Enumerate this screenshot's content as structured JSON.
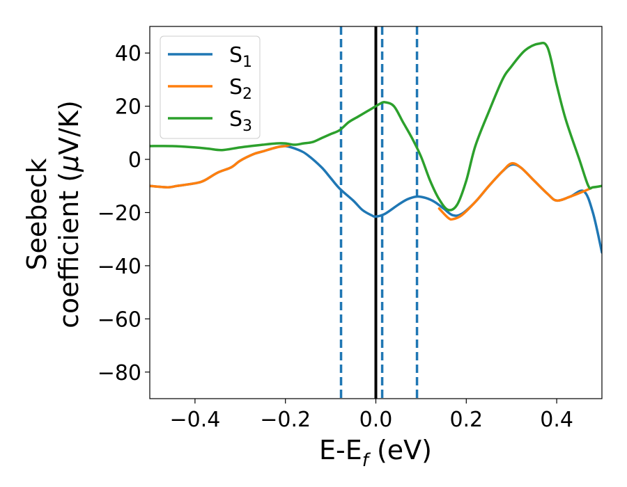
{
  "chart_data": {
    "type": "line",
    "xlabel": "E-E",
    "xlabel_sub": "f",
    "xlabel_units": " (eV)",
    "ylabel_line1": "Seebeck",
    "ylabel_line2": "coefficient  (",
    "ylabel_mu": "μ",
    "ylabel_units": "V/K)",
    "xlim": [
      -0.5,
      0.5
    ],
    "ylim": [
      -90,
      50
    ],
    "xticks": [
      -0.4,
      -0.2,
      0.0,
      0.2,
      0.4
    ],
    "xtick_labels": [
      "−0.4",
      "−0.2",
      "0.0",
      "0.2",
      "0.4"
    ],
    "yticks": [
      -80,
      -60,
      -40,
      -20,
      0,
      20,
      40
    ],
    "ytick_labels": [
      "−80",
      "−60",
      "−40",
      "−20",
      "0",
      "20",
      "40"
    ],
    "legend_placement": "upper-left",
    "grid": false,
    "series": [
      {
        "name": "S",
        "subscript": "1",
        "color": "#1f77b4",
        "x": [
          -0.5,
          -0.46,
          -0.44,
          -0.4,
          -0.38,
          -0.35,
          -0.32,
          -0.3,
          -0.27,
          -0.25,
          -0.22,
          -0.2,
          -0.17,
          -0.15,
          -0.12,
          -0.1,
          -0.08,
          -0.05,
          -0.03,
          -0.01,
          0.0,
          0.02,
          0.05,
          0.07,
          0.09,
          0.11,
          0.13,
          0.15,
          0.17,
          0.19,
          0.22,
          0.25,
          0.28,
          0.3,
          0.32,
          0.35,
          0.38,
          0.4,
          0.43,
          0.46,
          0.48,
          0.5
        ],
        "y": [
          -10,
          -10.5,
          -10,
          -9,
          -8,
          -5,
          -3,
          -0.5,
          2,
          3,
          4.5,
          5,
          3.5,
          1.5,
          -3,
          -7,
          -11,
          -15.5,
          -19,
          -21,
          -21.5,
          -20.5,
          -17,
          -15,
          -14,
          -14.5,
          -16,
          -18.5,
          -21,
          -20.5,
          -16,
          -10,
          -4.5,
          -2,
          -3,
          -8,
          -13,
          -15.5,
          -14,
          -12,
          -20,
          -35
        ]
      },
      {
        "name": "S",
        "subscript": "2",
        "color": "#ff7f0e",
        "x": [
          -0.5,
          -0.46,
          -0.44,
          -0.4,
          -0.38,
          -0.35,
          -0.32,
          -0.3,
          -0.27,
          -0.25,
          -0.22,
          -0.2,
          -0.19
        ],
        "y": [
          -10,
          -10.5,
          -10,
          -9,
          -8,
          -5,
          -3,
          -0.5,
          2,
          3,
          4.5,
          5,
          5.5
        ],
        "x2": [
          0.14,
          0.16,
          0.17,
          0.19,
          0.22,
          0.25,
          0.28,
          0.3,
          0.32,
          0.35,
          0.38,
          0.4,
          0.43,
          0.46,
          0.48
        ],
        "y2": [
          -18.5,
          -22,
          -22.5,
          -21,
          -16,
          -10,
          -4.5,
          -1.5,
          -3,
          -8,
          -13,
          -15.5,
          -14,
          -12,
          -10.5
        ]
      },
      {
        "name": "S",
        "subscript": "3",
        "color": "#2ca02c",
        "x": [
          -0.5,
          -0.45,
          -0.4,
          -0.37,
          -0.34,
          -0.3,
          -0.25,
          -0.22,
          -0.2,
          -0.18,
          -0.16,
          -0.14,
          -0.12,
          -0.1,
          -0.08,
          -0.06,
          -0.04,
          -0.02,
          0.0,
          0.01,
          0.02,
          0.04,
          0.06,
          0.08,
          0.1,
          0.12,
          0.14,
          0.16,
          0.18,
          0.2,
          0.22,
          0.25,
          0.28,
          0.3,
          0.33,
          0.36,
          0.38,
          0.4,
          0.42,
          0.45,
          0.47,
          0.48,
          0.5
        ],
        "y": [
          5,
          5,
          4.5,
          4,
          3.5,
          4.5,
          5.5,
          6,
          6,
          5.5,
          6,
          6.5,
          8,
          9.5,
          11,
          14,
          16,
          18,
          20,
          21,
          21.5,
          20,
          14,
          8,
          1,
          -8,
          -15,
          -19,
          -17,
          -8,
          5,
          18,
          30,
          35,
          41,
          43.5,
          42,
          28,
          15,
          0,
          -10,
          -10.5,
          -10
        ]
      }
    ],
    "vlines": [
      {
        "x": -0.077,
        "style": "dashed",
        "color": "#1f77b4"
      },
      {
        "x": 0.0,
        "style": "solid",
        "color": "#000000"
      },
      {
        "x": 0.014,
        "style": "dashed",
        "color": "#1f77b4"
      },
      {
        "x": 0.091,
        "style": "dashed",
        "color": "#1f77b4"
      }
    ]
  }
}
